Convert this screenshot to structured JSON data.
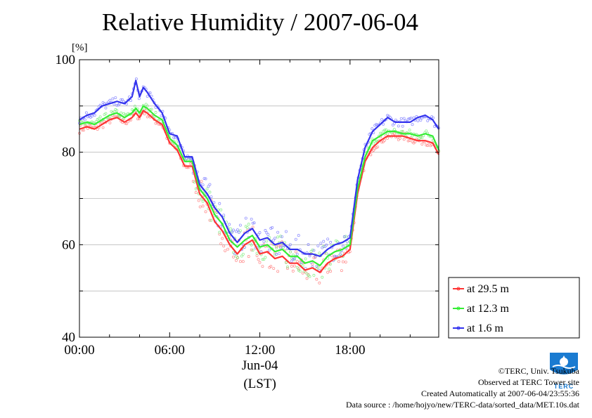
{
  "title": "Relative Humidity / 2007-06-04",
  "colors": {
    "series_29_5": "#ff3333",
    "series_12_3": "#33ee33",
    "series_1_6": "#3333ee",
    "scatter_29_5": "#ff8888",
    "scatter_12_3": "#88ee88",
    "scatter_1_6": "#8888ff",
    "grid": "#bbbbbb",
    "logo": "#1a7bd1"
  },
  "credits": {
    "copyright": "©TERC, Univ. Tsukuba",
    "observed": "Observed at TERC Tower site",
    "created": "Created Automatically at 2007-06-04/23:55:36",
    "source": "Data source : /home/hojyo/new/TERC-data/sorted_data/MET.10s.dat"
  },
  "logo": {
    "text": "TERC",
    "icon": "terc-logo-icon"
  },
  "chart_data": {
    "type": "line",
    "title": "Relative Humidity / 2007-06-04",
    "ylabel": "[%]",
    "ylim": [
      40,
      100
    ],
    "yticks": [
      "40",
      "60",
      "80",
      "100"
    ],
    "xlim": [
      0,
      23.9
    ],
    "xticks": [
      {
        "value": 0,
        "label": "00:00"
      },
      {
        "value": 6,
        "label": "06:00"
      },
      {
        "value": 12,
        "label": "12:00"
      },
      {
        "value": 18,
        "label": "18:00"
      }
    ],
    "date_label": "Jun-04",
    "xlabel": "(LST)",
    "grid": true,
    "legend_position": "right",
    "x": [
      0,
      0.5,
      1,
      1.5,
      2,
      2.5,
      3,
      3.5,
      3.75,
      4,
      4.25,
      4.5,
      5,
      5.5,
      6,
      6.5,
      7,
      7.5,
      8,
      8.5,
      9,
      9.5,
      10,
      10.5,
      11,
      11.5,
      12,
      12.5,
      13,
      13.5,
      14,
      14.5,
      15,
      15.5,
      16,
      16.5,
      17,
      17.5,
      18,
      18.5,
      19,
      19.5,
      20,
      20.5,
      21,
      21.5,
      22,
      22.5,
      23,
      23.5,
      23.9
    ],
    "series": [
      {
        "name": "at 29.5 m",
        "color": "#ff3333",
        "values": [
          85,
          85.5,
          85,
          86,
          87,
          87.5,
          86.5,
          87.5,
          88.5,
          87.5,
          89,
          88.5,
          87,
          86,
          82,
          80.5,
          77,
          77,
          71,
          69,
          65,
          63,
          60,
          58,
          60,
          61,
          58,
          58.5,
          57,
          57.5,
          56,
          56,
          54.5,
          55,
          54,
          56,
          57,
          57.5,
          59,
          71,
          78,
          81,
          82.5,
          83.5,
          83.5,
          83.5,
          83,
          82.5,
          82.5,
          82,
          79.5
        ]
      },
      {
        "name": "at 12.3 m",
        "color": "#33ee33",
        "values": [
          86,
          86.5,
          86,
          87,
          88,
          88.5,
          87.5,
          88.5,
          89.5,
          88.5,
          90,
          89.5,
          88,
          87,
          83,
          81.5,
          78,
          78,
          72,
          70,
          66.5,
          64.5,
          61,
          59.5,
          61,
          62,
          59.5,
          60,
          58.5,
          59,
          57.5,
          57.5,
          56,
          56.5,
          55.5,
          57.5,
          58.5,
          59,
          60,
          72,
          79,
          82.5,
          83.5,
          84.5,
          84.5,
          84,
          84,
          83.5,
          84,
          83.5,
          80.5
        ]
      },
      {
        "name": "at 1.6 m",
        "color": "#3333ee",
        "values": [
          87,
          88,
          88.5,
          90,
          90.5,
          91,
          90.5,
          92,
          95.5,
          92,
          94,
          93,
          90.5,
          88.5,
          84,
          83.5,
          79,
          79,
          73,
          71,
          68,
          66,
          62.5,
          60.5,
          62.5,
          63.5,
          61,
          61.5,
          60,
          60.5,
          59,
          59,
          58,
          58,
          57.5,
          59,
          60,
          60.5,
          61.5,
          74,
          81,
          84.5,
          86,
          87.5,
          86.5,
          86.5,
          86.5,
          87.5,
          88,
          87,
          85
        ]
      }
    ]
  }
}
